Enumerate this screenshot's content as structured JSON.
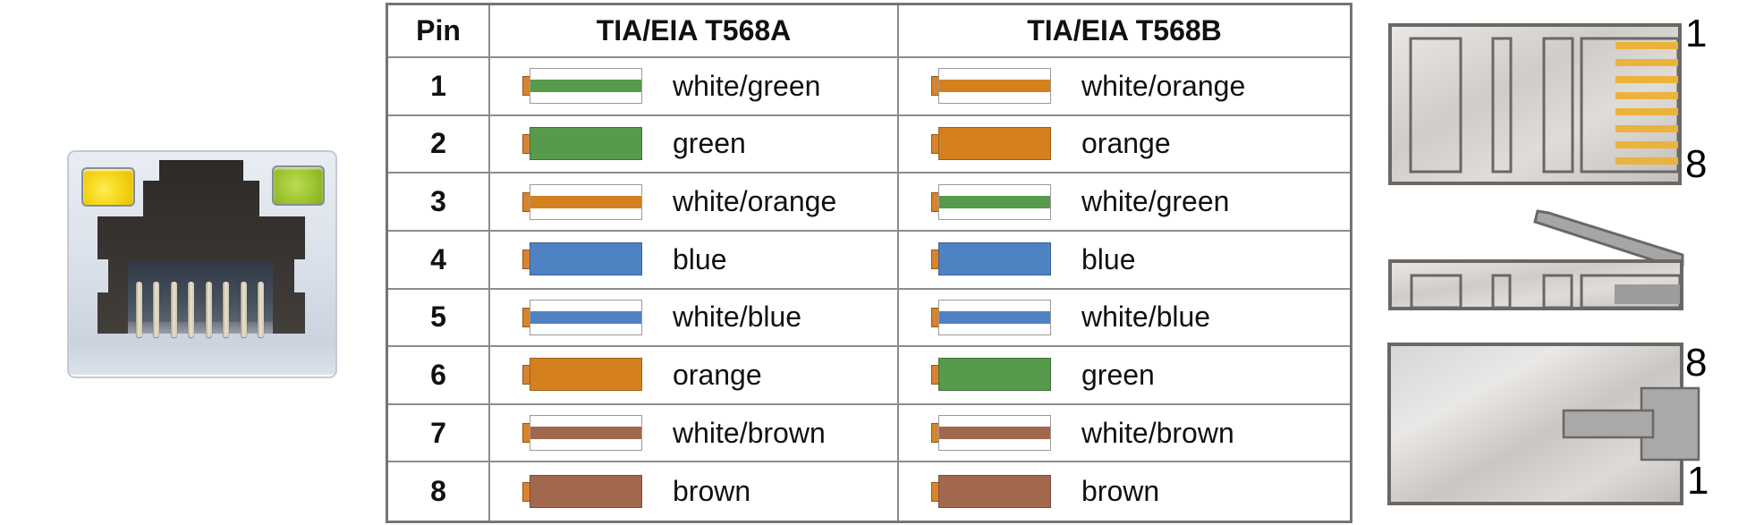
{
  "table": {
    "headers": {
      "pin": "Pin",
      "t568a": "TIA/EIA T568A",
      "t568b": "TIA/EIA T568B"
    },
    "rows": [
      {
        "pin": "1",
        "a": {
          "label": "white/green",
          "style": "striped",
          "color": "green"
        },
        "b": {
          "label": "white/orange",
          "style": "striped",
          "color": "orange"
        }
      },
      {
        "pin": "2",
        "a": {
          "label": "green",
          "style": "solid",
          "color": "green"
        },
        "b": {
          "label": "orange",
          "style": "solid",
          "color": "orange"
        }
      },
      {
        "pin": "3",
        "a": {
          "label": "white/orange",
          "style": "striped",
          "color": "orange"
        },
        "b": {
          "label": "white/green",
          "style": "striped",
          "color": "green"
        }
      },
      {
        "pin": "4",
        "a": {
          "label": "blue",
          "style": "solid",
          "color": "blue"
        },
        "b": {
          "label": "blue",
          "style": "solid",
          "color": "blue"
        }
      },
      {
        "pin": "5",
        "a": {
          "label": "white/blue",
          "style": "striped",
          "color": "blue"
        },
        "b": {
          "label": "white/blue",
          "style": "striped",
          "color": "blue"
        }
      },
      {
        "pin": "6",
        "a": {
          "label": "orange",
          "style": "solid",
          "color": "orange"
        },
        "b": {
          "label": "green",
          "style": "solid",
          "color": "green"
        }
      },
      {
        "pin": "7",
        "a": {
          "label": "white/brown",
          "style": "striped",
          "color": "brown"
        },
        "b": {
          "label": "white/brown",
          "style": "striped",
          "color": "brown"
        }
      },
      {
        "pin": "8",
        "a": {
          "label": "brown",
          "style": "solid",
          "color": "brown"
        },
        "b": {
          "label": "brown",
          "style": "solid",
          "color": "brown"
        }
      }
    ]
  },
  "colors": {
    "orange": "#D5801F",
    "green": "#579A4C",
    "blue": "#4E82C2",
    "brown": "#A2684E",
    "nub": "#D9832C",
    "gold": "#EBB33C"
  },
  "plug_top_view": {
    "top_label": "1",
    "bottom_label": "8"
  },
  "plug_bottom_view": {
    "top_label": "8",
    "bottom_label": "1"
  }
}
